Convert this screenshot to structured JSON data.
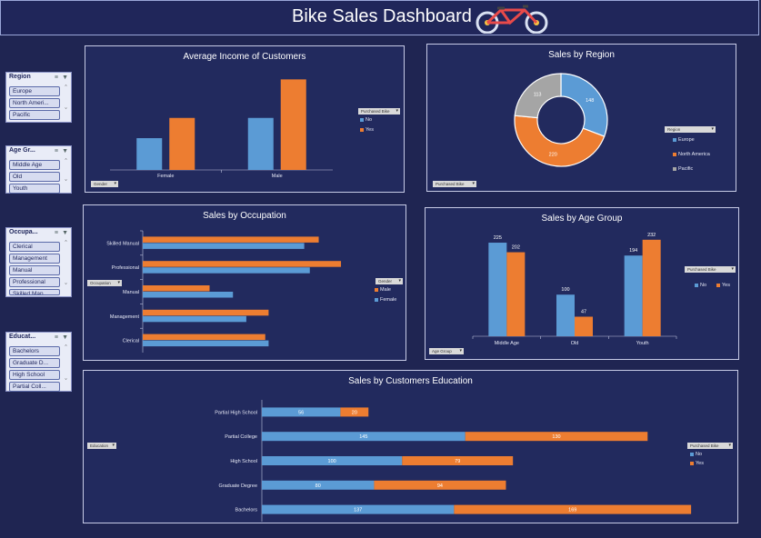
{
  "header": {
    "title": "Bike Sales Dashboard"
  },
  "colors": {
    "blue": "#5b9bd5",
    "orange": "#ed7d31",
    "gray": "#a5a5a5",
    "bg": "#1f2552",
    "panel": "#222a5e"
  },
  "slicers": [
    {
      "title": "Region",
      "items": [
        "Europe",
        "North Ameri...",
        "Pacific"
      ]
    },
    {
      "title": "Age Gr...",
      "items": [
        "Middle Age",
        "Old",
        "Youth"
      ]
    },
    {
      "title": "Occupa...",
      "items": [
        "Clerical",
        "Management",
        "Manual",
        "Professional",
        "Skilled Man..."
      ]
    },
    {
      "title": "Educat...",
      "items": [
        "Bachelors",
        "Graduate D...",
        "High School",
        "Partial Coll..."
      ]
    }
  ],
  "filters": {
    "purchased_bike": "Purchased Bike",
    "gender": "Gender",
    "region": "Region",
    "occupation": "Occupation",
    "age_group": "Age Group",
    "education": "Education"
  },
  "chart_data": [
    {
      "id": "income",
      "type": "bar",
      "title": "Average Income of Customers",
      "categories": [
        "Female",
        "Male"
      ],
      "series": [
        {
          "name": "No",
          "values": [
            33000,
            54000
          ]
        },
        {
          "name": "Yes",
          "values": [
            54000,
            94000
          ]
        }
      ],
      "ylim": [
        0,
        100000
      ]
    },
    {
      "id": "region",
      "type": "pie",
      "title": "Sales by Region",
      "labels": [
        "Europe",
        "North America",
        "Pacific"
      ],
      "values": [
        148,
        220,
        113
      ]
    },
    {
      "id": "occupation",
      "type": "bar",
      "orientation": "horizontal",
      "title": "Sales by Occupation",
      "categories": [
        "Skilled Manual",
        "Professional",
        "Manual",
        "Management",
        "Clerical"
      ],
      "series": [
        {
          "name": "Male",
          "values": [
            158,
            178,
            60,
            113,
            110
          ]
        },
        {
          "name": "Female",
          "values": [
            145,
            150,
            81,
            93,
            113
          ]
        }
      ],
      "xlim": [
        0,
        200
      ]
    },
    {
      "id": "age",
      "type": "bar",
      "title": "Sales by Age Group",
      "categories": [
        "Middle Age",
        "Old",
        "Youth"
      ],
      "series": [
        {
          "name": "No",
          "values": [
            225,
            100,
            194
          ]
        },
        {
          "name": "Yes",
          "values": [
            202,
            47,
            232
          ]
        }
      ],
      "ylim": [
        0,
        260
      ]
    },
    {
      "id": "education",
      "type": "bar",
      "orientation": "horizontal",
      "stacked": true,
      "title": "Sales by Customers Education",
      "categories": [
        "Partial High School",
        "Partial College",
        "High School",
        "Graduate Degree",
        "Bachelors"
      ],
      "series": [
        {
          "name": "No",
          "values": [
            56,
            145,
            100,
            80,
            137
          ]
        },
        {
          "name": "Yes",
          "values": [
            20,
            130,
            79,
            94,
            169
          ]
        }
      ],
      "xlim": [
        0,
        350
      ]
    }
  ]
}
